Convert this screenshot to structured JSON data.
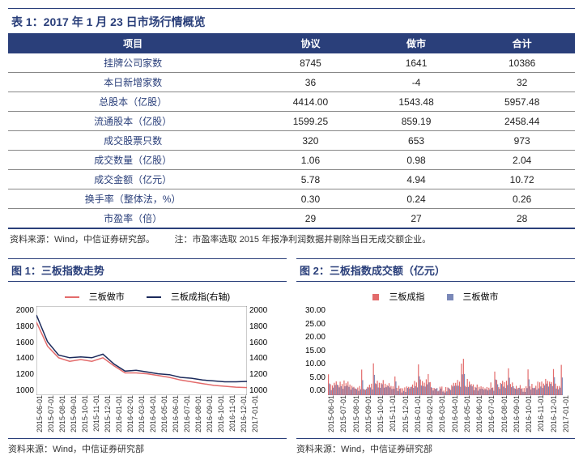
{
  "table": {
    "title": "表 1：2017 年 1 月 23 日市场行情概览",
    "columns": [
      "项目",
      "协议",
      "做市",
      "合计"
    ],
    "rows": [
      [
        "挂牌公司家数",
        "8745",
        "1641",
        "10386"
      ],
      [
        "本日新增家数",
        "36",
        "-4",
        "32"
      ],
      [
        "总股本（亿股）",
        "4414.00",
        "1543.48",
        "5957.48"
      ],
      [
        "流通股本（亿股）",
        "1599.25",
        "859.19",
        "2458.44"
      ],
      [
        "成交股票只数",
        "320",
        "653",
        "973"
      ],
      [
        "成交数量（亿股）",
        "1.06",
        "0.98",
        "2.04"
      ],
      [
        "成交金额（亿元）",
        "5.78",
        "4.94",
        "10.72"
      ],
      [
        "换手率（整体法，%）",
        "0.30",
        "0.24",
        "0.26"
      ],
      [
        "市盈率（倍）",
        "29",
        "27",
        "28"
      ]
    ],
    "source": "资料来源：Wind，中信证券研究部。",
    "note": "注：市盈率选取 2015 年报净利润数据并剔除当日无成交额企业。"
  },
  "chart1": {
    "title": "图 1：三板指数走势",
    "type": "line",
    "legend": [
      {
        "label": "三板做市",
        "color": "#e36b6b"
      },
      {
        "label": "三板成指(右轴)",
        "color": "#1b2a5b"
      }
    ],
    "ylim": [
      1000,
      2000
    ],
    "ytick_step": 200,
    "yticks": [
      "1000",
      "1200",
      "1400",
      "1600",
      "1800",
      "2000"
    ],
    "x_labels": [
      "2015-06-01",
      "2015-07-01",
      "2015-08-01",
      "2015-09-01",
      "2015-10-01",
      "2015-11-01",
      "2015-12-01",
      "2016-01-01",
      "2016-02-01",
      "2016-03-01",
      "2016-04-01",
      "2016-05-01",
      "2016-06-01",
      "2016-07-01",
      "2016-08-01",
      "2016-09-01",
      "2016-10-01",
      "2016-11-01",
      "2016-12-01",
      "2017-01-01"
    ],
    "series_a_color": "#e36b6b",
    "series_b_color": "#1b2a5b",
    "series_a": [
      1820,
      1550,
      1420,
      1380,
      1400,
      1380,
      1420,
      1330,
      1250,
      1250,
      1240,
      1220,
      1200,
      1170,
      1150,
      1130,
      1110,
      1100,
      1090,
      1085
    ],
    "series_b": [
      1900,
      1600,
      1450,
      1420,
      1430,
      1420,
      1460,
      1350,
      1270,
      1280,
      1260,
      1240,
      1230,
      1200,
      1190,
      1170,
      1160,
      1150,
      1150,
      1155
    ],
    "source": "资料来源：Wind，中信证券研究部"
  },
  "chart2": {
    "title": "图 2：三板指数成交额（亿元）",
    "type": "bar",
    "legend": [
      {
        "label": "三板成指",
        "color": "#e36b6b"
      },
      {
        "label": "三板做市",
        "color": "#7a88b8"
      }
    ],
    "ylim": [
      0,
      30
    ],
    "ytick_step": 5,
    "yticks": [
      "0.00",
      "5.00",
      "10.00",
      "15.00",
      "20.00",
      "25.00",
      "30.00"
    ],
    "x_labels": [
      "2015-06-01",
      "2015-07-01",
      "2015-08-01",
      "2015-09-01",
      "2015-10-01",
      "2015-11-01",
      "2015-12-01",
      "2016-01-01",
      "2016-02-01",
      "2016-03-01",
      "2016-04-01",
      "2016-05-01",
      "2016-06-01",
      "2016-07-01",
      "2016-08-01",
      "2016-09-01",
      "2016-10-01",
      "2016-11-01",
      "2016-12-01",
      "2017-01-01"
    ],
    "series_a_color": "#e36b6b",
    "series_b_color": "#7a88b8",
    "source": "资料来源：Wind，中信证券研究部"
  }
}
